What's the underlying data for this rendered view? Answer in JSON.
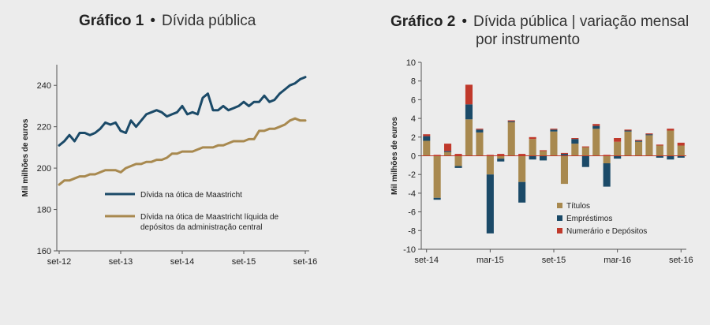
{
  "chart_data": [
    {
      "type": "line",
      "title_bold": "Gráfico 1",
      "title_sep": "•",
      "title": "Dívida pública",
      "ylabel": "Mil milhões de euros",
      "xlabel": "",
      "ylim": [
        160,
        250
      ],
      "yticks": [
        160,
        180,
        200,
        220,
        240
      ],
      "xlim": [
        0,
        49
      ],
      "xtick_labels": [
        {
          "i": 0,
          "label": "set-12"
        },
        {
          "i": 12,
          "label": "set-13"
        },
        {
          "i": 24,
          "label": "set-14"
        },
        {
          "i": 36,
          "label": "set-15"
        },
        {
          "i": 48,
          "label": "set-16"
        }
      ],
      "legend_position": "bottom-center",
      "series": [
        {
          "name": "Dívida na ótica de Maastricht",
          "color": "#1b4a68",
          "values": [
            211,
            213,
            216,
            213,
            217,
            217,
            216,
            217,
            219,
            222,
            221,
            222,
            218,
            217,
            223,
            220,
            223,
            226,
            227,
            228,
            227,
            225,
            226,
            227,
            230,
            226,
            227,
            226,
            234,
            236,
            228,
            228,
            230,
            228,
            229,
            230,
            232,
            230,
            232,
            232,
            235,
            232,
            233,
            236,
            238,
            240,
            241,
            243,
            244
          ]
        },
        {
          "name": "Dívida na ótica de Maastricht líquida de depósitos da administração central",
          "color": "#a8894f",
          "values": [
            192,
            194,
            194,
            195,
            196,
            196,
            197,
            197,
            198,
            199,
            199,
            199,
            198,
            200,
            201,
            202,
            202,
            203,
            203,
            204,
            204,
            205,
            207,
            207,
            208,
            208,
            208,
            209,
            210,
            210,
            210,
            211,
            211,
            212,
            213,
            213,
            213,
            214,
            214,
            218,
            218,
            219,
            219,
            220,
            221,
            223,
            224,
            223,
            223
          ]
        }
      ]
    },
    {
      "type": "bar",
      "stacked": true,
      "title_bold": "Gráfico 2",
      "title_sep": "•",
      "title": "Dívida pública | variação mensal",
      "title_line2": "por instrumento",
      "ylabel": "Mil milhões de euros",
      "xlabel": "",
      "ylim": [
        -10,
        10
      ],
      "yticks": [
        -10,
        -8,
        -6,
        -4,
        -2,
        0,
        2,
        4,
        6,
        8,
        10
      ],
      "xtick_labels": [
        {
          "i": 0,
          "label": "set-14"
        },
        {
          "i": 6,
          "label": "mar-15"
        },
        {
          "i": 12,
          "label": "set-15"
        },
        {
          "i": 18,
          "label": "mar-16"
        },
        {
          "i": 24,
          "label": "set-16"
        }
      ],
      "legend_position": "bottom-center",
      "categories": [
        "set-14",
        "out-14",
        "nov-14",
        "dez-14",
        "jan-15",
        "fev-15",
        "mar-15",
        "abr-15",
        "mai-15",
        "jun-15",
        "jul-15",
        "ago-15",
        "set-15",
        "out-15",
        "nov-15",
        "dez-15",
        "jan-16",
        "fev-16",
        "mar-16",
        "abr-16",
        "mai-16",
        "jun-16",
        "jul-16",
        "ago-16",
        "set-16"
      ],
      "series": [
        {
          "name": "Títulos",
          "color": "#a8894f",
          "values": [
            1.6,
            -4.5,
            0.4,
            -1.1,
            3.9,
            2.5,
            -2.0,
            -0.3,
            3.6,
            -2.8,
            1.8,
            0.5,
            2.6,
            -3.0,
            1.3,
            0.9,
            2.9,
            -0.8,
            1.5,
            2.6,
            1.5,
            2.2,
            1.1,
            2.7,
            1.1
          ]
        },
        {
          "name": "Empréstimos",
          "color": "#1b4a68",
          "values": [
            0.5,
            -0.2,
            0.1,
            -0.2,
            1.6,
            0.3,
            -6.3,
            -0.3,
            0.1,
            -2.2,
            -0.4,
            -0.5,
            0.2,
            0.2,
            0.5,
            -1.2,
            0.3,
            -2.5,
            -0.3,
            0.1,
            0.1,
            0.1,
            -0.2,
            -0.4,
            -0.2
          ]
        },
        {
          "name": "Numerário e Depósitos",
          "color": "#c0392b",
          "values": [
            0.2,
            0.1,
            0.8,
            0.2,
            2.1,
            0.1,
            0.1,
            0.2,
            0.1,
            0.2,
            0.2,
            0.1,
            0.1,
            0.1,
            0.1,
            0.1,
            0.2,
            0.1,
            0.4,
            0.1,
            0.1,
            0.1,
            0.1,
            0.2,
            0.3
          ]
        }
      ]
    }
  ]
}
